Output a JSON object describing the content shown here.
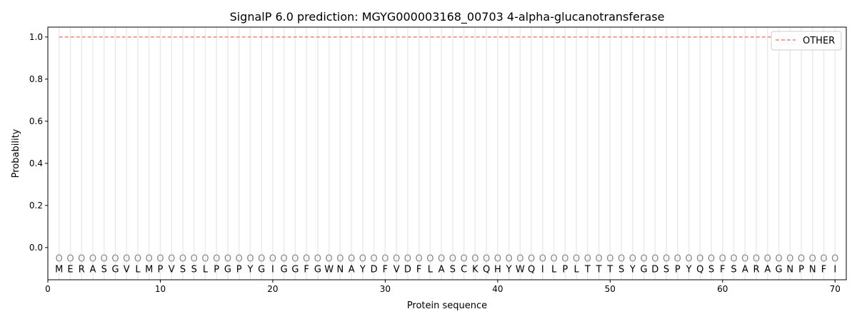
{
  "chart_data": {
    "type": "line",
    "title": "SignalP 6.0 prediction: MGYG000003168_00703 4-alpha-glucanotransferase",
    "xlabel": "Protein sequence",
    "ylabel": "Probability",
    "xlim": [
      0,
      71
    ],
    "ylim": [
      -0.153,
      1.047
    ],
    "xticks": [
      0,
      10,
      20,
      30,
      40,
      50,
      60,
      70
    ],
    "yticks": [
      0.0,
      0.2,
      0.4,
      0.6,
      0.8,
      1.0
    ],
    "ytick_labels": [
      "0.0",
      "0.2",
      "0.4",
      "0.6",
      "0.8",
      "1.0"
    ],
    "grid": "vertical lines at each residue",
    "legend_placement": "top-right",
    "sequence": [
      "M",
      "E",
      "R",
      "A",
      "S",
      "G",
      "V",
      "L",
      "M",
      "P",
      "V",
      "S",
      "S",
      "L",
      "P",
      "G",
      "P",
      "Y",
      "G",
      "I",
      "G",
      "G",
      "F",
      "G",
      "W",
      "N",
      "A",
      "Y",
      "D",
      "F",
      "V",
      "D",
      "F",
      "L",
      "A",
      "S",
      "C",
      "K",
      "Q",
      "H",
      "Y",
      "W",
      "Q",
      "I",
      "L",
      "P",
      "L",
      "T",
      "T",
      "T",
      "S",
      "Y",
      "G",
      "D",
      "S",
      "P",
      "Y",
      "Q",
      "S",
      "F",
      "S",
      "A",
      "R",
      "A",
      "G",
      "N",
      "P",
      "N",
      "F",
      "I"
    ],
    "region_label": "O",
    "series": [
      {
        "name": "OTHER",
        "color": "#f08080",
        "style": "dashed",
        "x_range": [
          1,
          70
        ],
        "value": 1.0
      }
    ]
  }
}
